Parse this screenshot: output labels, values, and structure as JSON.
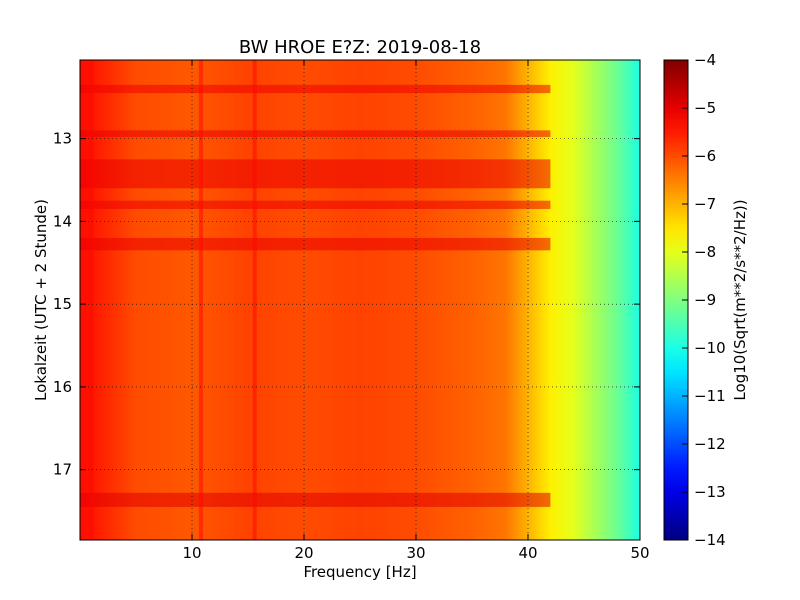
{
  "chart_data": {
    "type": "heatmap",
    "title": "BW HROE E?Z: 2019-08-18",
    "xlabel": "Frequency [Hz]",
    "ylabel": "Lokalzeit (UTC + 2 Stunde)",
    "xlim": [
      0,
      50
    ],
    "ylim": [
      17.85,
      12.05
    ],
    "x_ticks": [
      10,
      20,
      30,
      40,
      50
    ],
    "y_ticks": [
      13,
      14,
      15,
      16,
      17
    ],
    "grid": true,
    "colormap": "jet",
    "colorbar": {
      "label": "Log10(Sqrt(m**2/s**2/Hz))",
      "range": [
        -14,
        -4
      ],
      "ticks": [
        -4,
        -5,
        -6,
        -7,
        -8,
        -9,
        -10,
        -11,
        -12,
        -13,
        -14
      ]
    },
    "value_profile_by_frequency": [
      {
        "x": 0.5,
        "z": -5.4
      },
      {
        "x": 5,
        "z": -6.0
      },
      {
        "x": 10,
        "z": -6.1
      },
      {
        "x": 15,
        "z": -5.9
      },
      {
        "x": 20,
        "z": -6.0
      },
      {
        "x": 25,
        "z": -5.9
      },
      {
        "x": 30,
        "z": -6.0
      },
      {
        "x": 35,
        "z": -6.2
      },
      {
        "x": 38,
        "z": -6.4
      },
      {
        "x": 40,
        "z": -7.0
      },
      {
        "x": 42,
        "z": -7.6
      },
      {
        "x": 44,
        "z": -8.0
      },
      {
        "x": 46,
        "z": -8.6
      },
      {
        "x": 48,
        "z": -9.2
      },
      {
        "x": 50,
        "z": -10.0
      }
    ],
    "high_energy_time_bands": [
      {
        "from": 12.35,
        "to": 12.45,
        "delta": 0.4
      },
      {
        "from": 12.9,
        "to": 12.98,
        "delta": 0.5
      },
      {
        "from": 13.25,
        "to": 13.6,
        "delta": 0.5
      },
      {
        "from": 13.75,
        "to": 13.85,
        "delta": 0.4
      },
      {
        "from": 14.2,
        "to": 14.35,
        "delta": 0.5
      },
      {
        "from": 17.28,
        "to": 17.45,
        "delta": 0.8
      }
    ],
    "vertical_lines_hz": [
      1.0,
      10.8,
      15.6
    ]
  }
}
